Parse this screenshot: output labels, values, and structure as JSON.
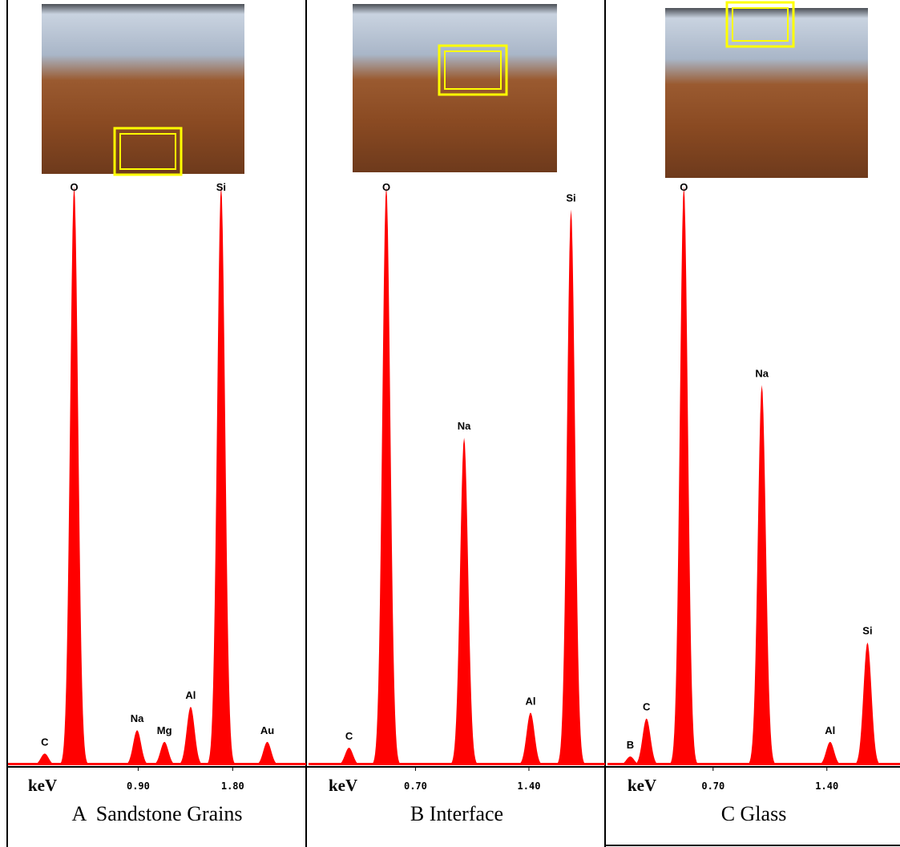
{
  "chart_data": [
    {
      "type": "spectrum",
      "title": "A  Sandstone Grains",
      "xlabel": "keV",
      "color": "#ff0000",
      "xlim": [
        -0.34,
        2.5
      ],
      "xticks": [
        {
          "value": 0.9,
          "label": "0.90"
        },
        {
          "value": 1.8,
          "label": "1.80"
        }
      ],
      "ylim": [
        0,
        100
      ],
      "peak_labels": [
        "C",
        "O",
        "Na",
        "Mg",
        "Al",
        "Si",
        "Au"
      ],
      "x": [
        0.01,
        0.29,
        0.89,
        1.15,
        1.4,
        1.69,
        2.13
      ],
      "values": [
        2,
        99,
        6,
        4,
        10,
        99,
        4
      ]
    },
    {
      "type": "spectrum",
      "title": "B Interface",
      "xlabel": "keV",
      "color": "#ff0000",
      "xlim": [
        0.04,
        1.87
      ],
      "xticks": [
        {
          "value": 0.7,
          "label": "0.70"
        },
        {
          "value": 1.4,
          "label": "1.40"
        }
      ],
      "ylim": [
        0,
        100
      ],
      "peak_labels": [
        "C",
        "O",
        "Na",
        "Al",
        "Si"
      ],
      "x": [
        0.29,
        0.52,
        1.0,
        1.41,
        1.66
      ],
      "values": [
        3,
        99,
        56,
        9,
        95
      ]
    },
    {
      "type": "spectrum",
      "title": "C Glass",
      "xlabel": "keV",
      "color": "#ff0000",
      "xlim": [
        0.05,
        1.85
      ],
      "xticks": [
        {
          "value": 0.7,
          "label": "0.70"
        },
        {
          "value": 1.4,
          "label": "1.40"
        }
      ],
      "ylim": [
        0,
        100
      ],
      "peak_labels": [
        "B",
        "C",
        "O",
        "Na",
        "Al",
        "Si"
      ],
      "x": [
        0.19,
        0.29,
        0.52,
        1.0,
        1.42,
        1.65
      ],
      "values": [
        1.5,
        8,
        99,
        65,
        4,
        21
      ]
    }
  ]
}
